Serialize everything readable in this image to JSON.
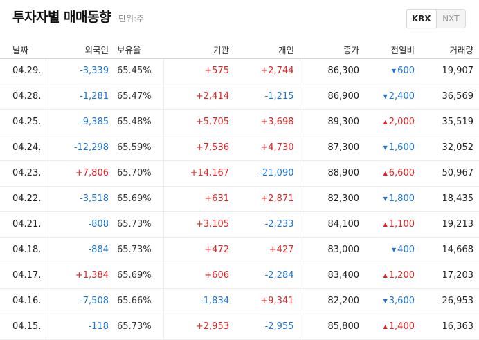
{
  "header": {
    "title": "투자자별 매매동향",
    "unit": "단위:주",
    "toggle": {
      "active": "KRX",
      "inactive": "NXT"
    }
  },
  "columns": {
    "date": "날짜",
    "foreign": "외국인",
    "ownership": "보유율",
    "institution": "기관",
    "individual": "개인",
    "close": "종가",
    "change": "전일비",
    "volume": "거래량"
  },
  "colors": {
    "up": "#e02424",
    "down": "#1a73d9",
    "up_arrow": "▲",
    "down_arrow": "▼"
  },
  "rows": [
    {
      "date": "04.29.",
      "foreign": "-3,339",
      "ownership": "65.45%",
      "institution": "+575",
      "individual": "+2,744",
      "close": "86,300",
      "change_dir": "down",
      "change": "600",
      "volume": "19,907"
    },
    {
      "date": "04.28.",
      "foreign": "-1,281",
      "ownership": "65.47%",
      "institution": "+2,414",
      "individual": "-1,215",
      "close": "86,900",
      "change_dir": "down",
      "change": "2,400",
      "volume": "36,569"
    },
    {
      "date": "04.25.",
      "foreign": "-9,385",
      "ownership": "65.48%",
      "institution": "+5,705",
      "individual": "+3,698",
      "close": "89,300",
      "change_dir": "up",
      "change": "2,000",
      "volume": "35,519"
    },
    {
      "date": "04.24.",
      "foreign": "-12,298",
      "ownership": "65.59%",
      "institution": "+7,536",
      "individual": "+4,730",
      "close": "87,300",
      "change_dir": "down",
      "change": "1,600",
      "volume": "32,052"
    },
    {
      "date": "04.23.",
      "foreign": "+7,806",
      "ownership": "65.70%",
      "institution": "+14,167",
      "individual": "-21,090",
      "close": "88,900",
      "change_dir": "up",
      "change": "6,600",
      "volume": "50,967"
    },
    {
      "date": "04.22.",
      "foreign": "-3,518",
      "ownership": "65.69%",
      "institution": "+631",
      "individual": "+2,871",
      "close": "82,300",
      "change_dir": "down",
      "change": "1,800",
      "volume": "18,435"
    },
    {
      "date": "04.21.",
      "foreign": "-808",
      "ownership": "65.73%",
      "institution": "+3,105",
      "individual": "-2,233",
      "close": "84,100",
      "change_dir": "up",
      "change": "1,100",
      "volume": "19,213"
    },
    {
      "date": "04.18.",
      "foreign": "-884",
      "ownership": "65.73%",
      "institution": "+472",
      "individual": "+427",
      "close": "83,000",
      "change_dir": "down",
      "change": "400",
      "volume": "14,668"
    },
    {
      "date": "04.17.",
      "foreign": "+1,384",
      "ownership": "65.69%",
      "institution": "+606",
      "individual": "-2,284",
      "close": "83,400",
      "change_dir": "up",
      "change": "1,200",
      "volume": "17,203"
    },
    {
      "date": "04.16.",
      "foreign": "-7,508",
      "ownership": "65.66%",
      "institution": "-1,834",
      "individual": "+9,341",
      "close": "82,200",
      "change_dir": "down",
      "change": "3,600",
      "volume": "26,953"
    },
    {
      "date": "04.15.",
      "foreign": "-118",
      "ownership": "65.73%",
      "institution": "+2,953",
      "individual": "-2,955",
      "close": "85,800",
      "change_dir": "up",
      "change": "1,400",
      "volume": "16,363"
    }
  ]
}
